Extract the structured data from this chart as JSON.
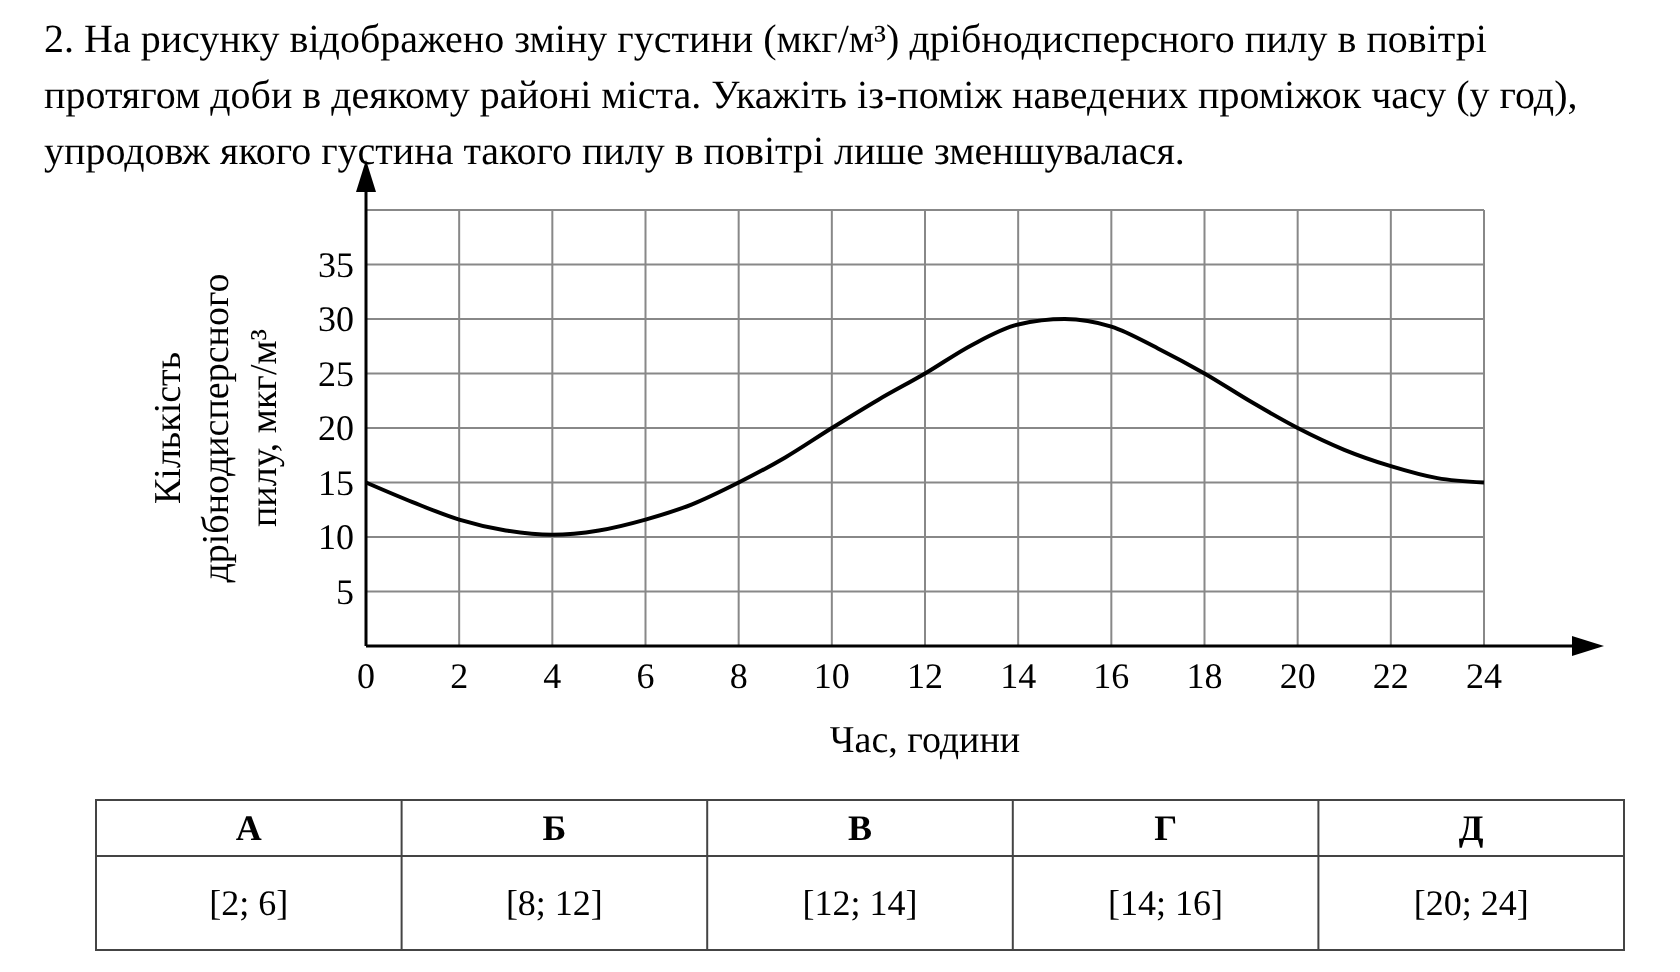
{
  "chart_data": {
    "type": "line",
    "title": "2. На рисунку відображено зміну густини (мкг/м³) дрібнодисперсного пилу в повітрі протягом доби в деякому районі міста. Укажіть із-поміж наведених проміжок часу (у год), упродовж якого густина такого пилу в повітрі лише зменшувалася.",
    "xlabel": "Час, години",
    "ylabel": "Кількість дрібнодисперсного пилу, мкг/м³",
    "x": [
      0,
      1,
      2,
      3,
      4,
      5,
      6,
      7,
      8,
      9,
      10,
      11,
      12,
      13,
      14,
      15,
      16,
      17,
      18,
      19,
      20,
      21,
      22,
      23,
      24
    ],
    "series": [
      {
        "color": "#000000",
        "values": [
          15,
          13.2,
          11.6,
          10.6,
          10.2,
          10.6,
          11.6,
          13,
          15,
          17.3,
          20,
          22.6,
          25,
          27.6,
          29.5,
          30,
          29.3,
          27.3,
          25,
          22.4,
          20,
          18,
          16.5,
          15.4,
          15
        ]
      }
    ],
    "xlim": [
      0,
      24
    ],
    "xticks": [
      0,
      2,
      4,
      6,
      8,
      10,
      12,
      14,
      16,
      18,
      20,
      22,
      24
    ],
    "ylim": [
      0,
      40
    ],
    "yticks": [
      5,
      10,
      15,
      20,
      25,
      30,
      35,
      {
        "value": 40,
        "label": null
      }
    ],
    "grid": true,
    "marker": "none",
    "line_style": "solid",
    "annotations": [
      "А",
      "Б",
      "В",
      "Г",
      "Д",
      "[2; 6]",
      "[8; 12]",
      "[12; 14]",
      "[14; 16]",
      "[20; 24]"
    ]
  }
}
